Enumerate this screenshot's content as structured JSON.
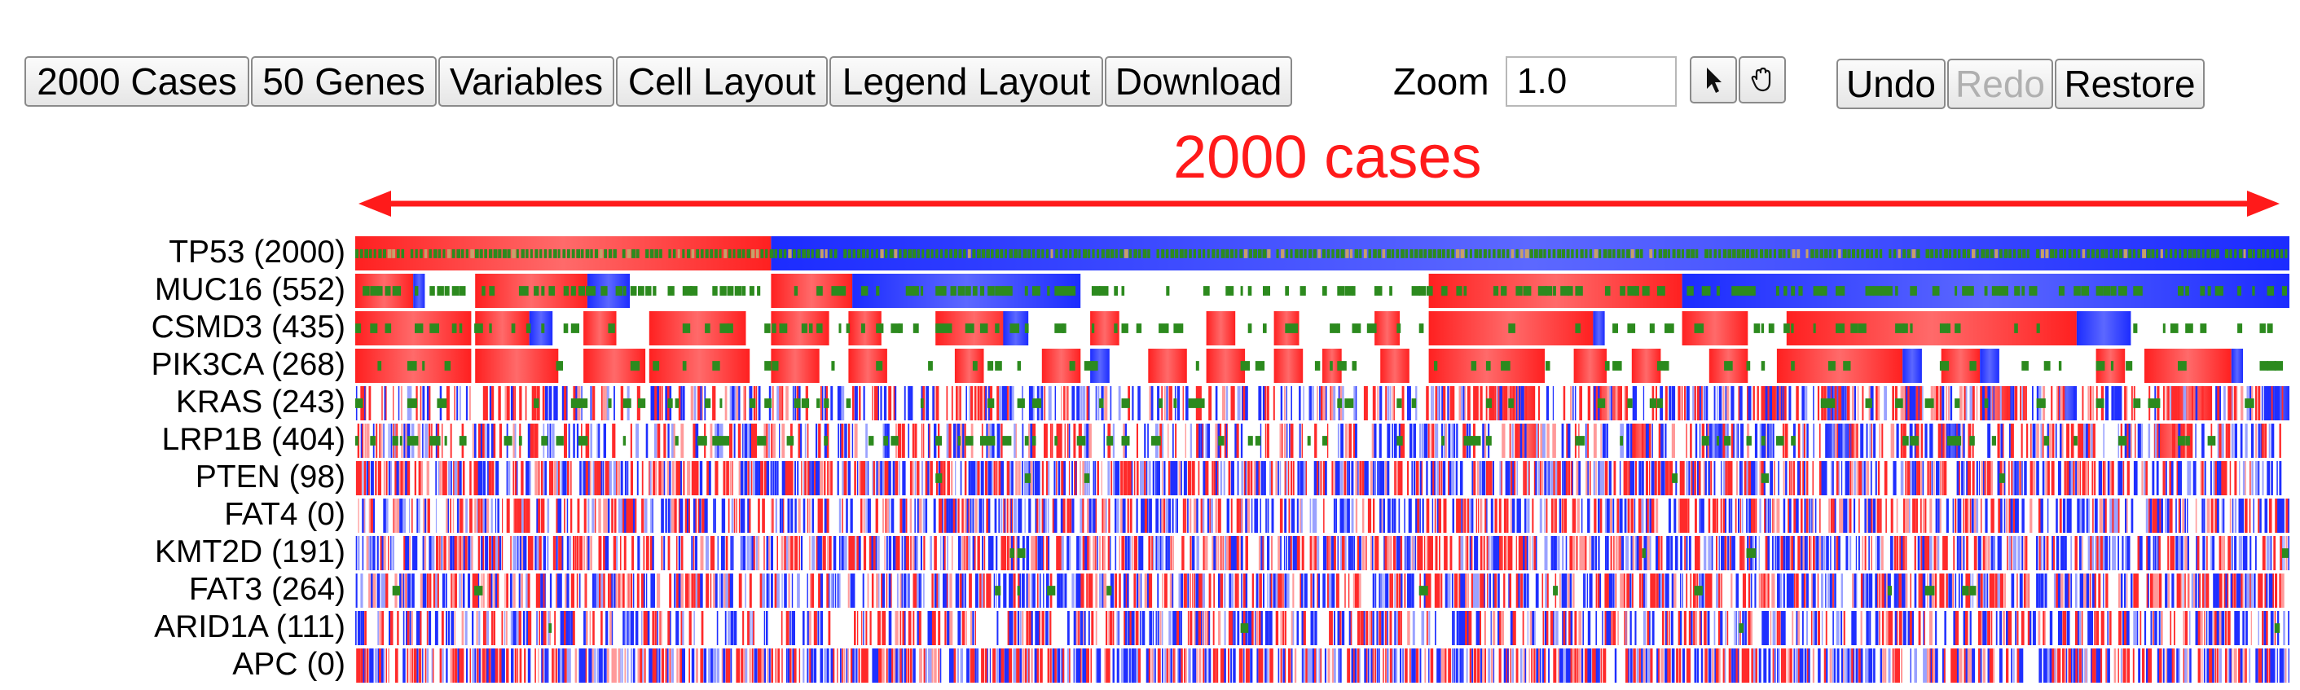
{
  "toolbar": {
    "cases_label": "2000 Cases",
    "genes_label": "50 Genes",
    "variables_label": "Variables",
    "cell_layout_label": "Cell Layout",
    "legend_layout_label": "Legend Layout",
    "download_label": "Download",
    "zoom_label": "Zoom",
    "zoom_value": "1.0",
    "pointer_icon": "cursor-arrow-icon",
    "pan_icon": "hand-grab-icon",
    "undo_label": "Undo",
    "redo_label": "Redo",
    "restore_label": "Restore"
  },
  "annotation": {
    "span_label": "2000 cases",
    "color": "#ff1a1a"
  },
  "genes": [
    {
      "label": "TP53 (2000)",
      "segments": [
        [
          0,
          0.215,
          "red"
        ],
        [
          0.215,
          1.0,
          "blue"
        ]
      ],
      "green": 0.95,
      "greenStyle": "stripe"
    },
    {
      "label": "MUC16 (552)",
      "segments": [
        [
          0,
          0.03,
          "red"
        ],
        [
          0.03,
          0.036,
          "blue"
        ],
        [
          0.062,
          0.12,
          "red"
        ],
        [
          0.12,
          0.142,
          "blue"
        ],
        [
          0.215,
          0.257,
          "red"
        ],
        [
          0.257,
          0.375,
          "blue"
        ],
        [
          0.555,
          0.686,
          "red"
        ],
        [
          0.686,
          1.0,
          "blue"
        ]
      ],
      "green": 0.9,
      "greenStyle": "bars"
    },
    {
      "label": "CSMD3 (435)",
      "segments": [
        [
          0,
          0.06,
          "red"
        ],
        [
          0.062,
          0.09,
          "red"
        ],
        [
          0.09,
          0.102,
          "blue"
        ],
        [
          0.118,
          0.135,
          "red"
        ],
        [
          0.152,
          0.202,
          "red"
        ],
        [
          0.215,
          0.245,
          "red"
        ],
        [
          0.255,
          0.272,
          "red"
        ],
        [
          0.3,
          0.34,
          "red"
        ],
        [
          0.335,
          0.348,
          "blue"
        ],
        [
          0.38,
          0.395,
          "red"
        ],
        [
          0.44,
          0.455,
          "red"
        ],
        [
          0.475,
          0.488,
          "red"
        ],
        [
          0.527,
          0.54,
          "red"
        ],
        [
          0.555,
          0.64,
          "red"
        ],
        [
          0.64,
          0.646,
          "blue"
        ],
        [
          0.686,
          0.72,
          "red"
        ],
        [
          0.74,
          0.89,
          "red"
        ],
        [
          0.89,
          0.918,
          "blue"
        ]
      ],
      "green": 0.55,
      "greenStyle": "bars"
    },
    {
      "label": "PIK3CA (268)",
      "segments": [
        [
          0,
          0.06,
          "red"
        ],
        [
          0.062,
          0.105,
          "red"
        ],
        [
          0.118,
          0.15,
          "red"
        ],
        [
          0.152,
          0.204,
          "red"
        ],
        [
          0.215,
          0.24,
          "red"
        ],
        [
          0.255,
          0.275,
          "red"
        ],
        [
          0.31,
          0.325,
          "red"
        ],
        [
          0.355,
          0.375,
          "red"
        ],
        [
          0.38,
          0.39,
          "blue"
        ],
        [
          0.41,
          0.43,
          "red"
        ],
        [
          0.44,
          0.46,
          "red"
        ],
        [
          0.475,
          0.49,
          "red"
        ],
        [
          0.5,
          0.51,
          "red"
        ],
        [
          0.53,
          0.545,
          "red"
        ],
        [
          0.555,
          0.615,
          "red"
        ],
        [
          0.63,
          0.647,
          "red"
        ],
        [
          0.66,
          0.675,
          "red"
        ],
        [
          0.7,
          0.72,
          "red"
        ],
        [
          0.735,
          0.8,
          "red"
        ],
        [
          0.8,
          0.81,
          "blue"
        ],
        [
          0.82,
          0.84,
          "red"
        ],
        [
          0.84,
          0.85,
          "blue"
        ],
        [
          0.9,
          0.915,
          "red"
        ],
        [
          0.925,
          0.97,
          "red"
        ],
        [
          0.97,
          0.976,
          "blue"
        ]
      ],
      "green": 0.4,
      "greenStyle": "bars"
    },
    {
      "label": "KRAS (243)",
      "segments": [
        [
          0.59,
          0.61,
          "red"
        ],
        [
          0.64,
          0.655,
          "red"
        ],
        [
          0.73,
          0.74,
          "red"
        ],
        [
          0.76,
          0.77,
          "blue"
        ],
        [
          0.8,
          0.81,
          "red"
        ],
        [
          0.84,
          0.855,
          "red"
        ],
        [
          0.88,
          0.89,
          "blue"
        ],
        [
          0.94,
          0.96,
          "red"
        ],
        [
          0.99,
          1.0,
          "blue"
        ]
      ],
      "density": 0.55,
      "green": 0.25,
      "greenStyle": "bars"
    },
    {
      "label": "LRP1B (404)",
      "segments": [
        [
          0.6,
          0.612,
          "red"
        ],
        [
          0.66,
          0.67,
          "red"
        ],
        [
          0.7,
          0.71,
          "blue"
        ],
        [
          0.76,
          0.775,
          "blue"
        ],
        [
          0.82,
          0.83,
          "blue"
        ],
        [
          0.93,
          0.95,
          "red"
        ]
      ],
      "density": 0.5,
      "green": 0.45,
      "greenStyle": "bars"
    },
    {
      "label": "PTEN (98)",
      "segments": [],
      "density": 0.72,
      "green": 0.03,
      "greenStyle": "bars"
    },
    {
      "label": "FAT4 (0)",
      "segments": [],
      "density": 0.62,
      "green": 0.0,
      "greenStyle": "bars"
    },
    {
      "label": "KMT2D (191)",
      "segments": [],
      "density": 0.68,
      "green": 0.05,
      "greenStyle": "bars"
    },
    {
      "label": "FAT3 (264)",
      "segments": [],
      "density": 0.66,
      "green": 0.08,
      "greenStyle": "bars"
    },
    {
      "label": "ARID1A (111)",
      "segments": [],
      "density": 0.6,
      "green": 0.02,
      "greenStyle": "bars"
    },
    {
      "label": "APC (0)",
      "segments": [],
      "density": 0.75,
      "green": 0.0,
      "greenStyle": "bars"
    }
  ],
  "colors": {
    "red": "#ff2a2a",
    "blue": "#1f2fff",
    "green": "#2c8a1e",
    "light_red": "#ff9a9a",
    "light_blue": "#9aa2ff"
  }
}
